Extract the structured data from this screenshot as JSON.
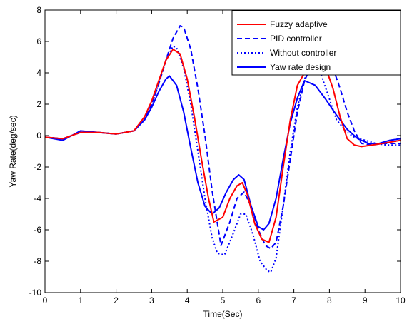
{
  "chart_data": {
    "type": "line",
    "title": "",
    "xlabel": "Time(Sec)",
    "ylabel": "Yaw Rate(deg/sec)",
    "xlim": [
      0,
      10
    ],
    "ylim": [
      -10,
      8
    ],
    "xticks": [
      "0",
      "1",
      "2",
      "3",
      "4",
      "5",
      "6",
      "7",
      "8",
      "9",
      "10"
    ],
    "yticks": [
      "8",
      "6",
      "4",
      "2",
      "0",
      "-2",
      "-4",
      "-6",
      "-8",
      "-10"
    ],
    "grid": false,
    "legend_position": "top-right",
    "series": [
      {
        "name": "Fuzzy adaptive",
        "color": "#ff0000",
        "style": "solid",
        "x": [
          0,
          0.5,
          1,
          1.5,
          2,
          2.5,
          2.8,
          3,
          3.2,
          3.4,
          3.6,
          3.8,
          4,
          4.2,
          4.4,
          4.6,
          4.75,
          5,
          5.2,
          5.4,
          5.55,
          5.7,
          5.9,
          6.1,
          6.3,
          6.5,
          6.7,
          6.9,
          7.1,
          7.3,
          7.6,
          7.9,
          8.1,
          8.3,
          8.5,
          8.7,
          8.9,
          9.2,
          9.5,
          10
        ],
        "values": [
          -0.1,
          -0.2,
          0.2,
          0.2,
          0.1,
          0.3,
          1.2,
          2.2,
          3.5,
          4.8,
          5.5,
          5.2,
          3.6,
          1.2,
          -1.5,
          -4.0,
          -5.5,
          -5.2,
          -4.0,
          -3.2,
          -3.0,
          -3.8,
          -5.6,
          -6.6,
          -6.8,
          -5.2,
          -2.0,
          1.0,
          3.2,
          4.0,
          4.3,
          4.3,
          3.0,
          1.2,
          -0.2,
          -0.6,
          -0.7,
          -0.6,
          -0.5,
          -0.3
        ]
      },
      {
        "name": "PID controller",
        "color": "#0000ff",
        "style": "dashed",
        "x": [
          0,
          0.5,
          1,
          1.5,
          2,
          2.5,
          2.8,
          3,
          3.2,
          3.4,
          3.6,
          3.8,
          3.9,
          4.1,
          4.3,
          4.5,
          4.7,
          4.95,
          5.2,
          5.4,
          5.6,
          5.8,
          6.0,
          6.2,
          6.35,
          6.5,
          6.7,
          6.9,
          7.1,
          7.3,
          7.6,
          7.9,
          8.1,
          8.3,
          8.5,
          8.7,
          8.9,
          9.2,
          9.5,
          10
        ],
        "values": [
          -0.1,
          -0.2,
          0.2,
          0.2,
          0.1,
          0.3,
          1.0,
          2.0,
          3.3,
          4.8,
          6.2,
          7.0,
          6.9,
          5.5,
          3.0,
          0.0,
          -3.5,
          -7.0,
          -5.5,
          -4.0,
          -3.6,
          -4.5,
          -6.0,
          -7.0,
          -7.2,
          -6.8,
          -4.5,
          -1.5,
          1.5,
          3.5,
          5.0,
          5.0,
          4.3,
          3.0,
          1.5,
          0.3,
          -0.5,
          -0.6,
          -0.5,
          -0.5
        ]
      },
      {
        "name": "Without controller",
        "color": "#0000ff",
        "style": "dotted",
        "x": [
          0,
          0.5,
          1,
          1.5,
          2,
          2.5,
          2.8,
          3,
          3.2,
          3.4,
          3.6,
          3.7,
          3.9,
          4.1,
          4.3,
          4.5,
          4.7,
          4.85,
          5.05,
          5.3,
          5.5,
          5.65,
          5.85,
          6.05,
          6.25,
          6.35,
          6.5,
          6.7,
          6.9,
          7.1,
          7.3,
          7.6,
          7.9,
          8.2,
          8.5,
          8.7,
          9.0,
          9.3,
          9.6,
          10
        ],
        "values": [
          -0.1,
          -0.2,
          0.2,
          0.2,
          0.1,
          0.3,
          1.0,
          2.0,
          3.3,
          4.8,
          5.7,
          5.6,
          4.3,
          2.0,
          -1.0,
          -4.0,
          -6.5,
          -7.5,
          -7.6,
          -6.2,
          -5.0,
          -5.0,
          -6.3,
          -8.0,
          -8.6,
          -8.7,
          -7.8,
          -4.5,
          -1.0,
          1.8,
          3.6,
          5.0,
          3.0,
          1.0,
          0.2,
          -0.1,
          -0.3,
          -0.5,
          -0.6,
          -0.6
        ]
      },
      {
        "name": "Yaw rate design",
        "color": "#0000ff",
        "style": "solid",
        "x": [
          0,
          0.5,
          1,
          1.5,
          2,
          2.5,
          2.8,
          3,
          3.2,
          3.4,
          3.5,
          3.7,
          3.9,
          4.1,
          4.3,
          4.5,
          4.7,
          4.9,
          5.1,
          5.3,
          5.45,
          5.6,
          5.8,
          6.0,
          6.15,
          6.3,
          6.5,
          6.7,
          6.9,
          7.1,
          7.3,
          7.6,
          7.9,
          8.2,
          8.5,
          8.8,
          9.1,
          9.4,
          9.7,
          10
        ],
        "values": [
          -0.1,
          -0.3,
          0.3,
          0.2,
          0.1,
          0.3,
          1.0,
          1.8,
          2.8,
          3.6,
          3.8,
          3.2,
          1.5,
          -0.8,
          -3.0,
          -4.5,
          -5.0,
          -4.6,
          -3.6,
          -2.8,
          -2.5,
          -2.8,
          -4.5,
          -5.8,
          -6.0,
          -5.6,
          -4.0,
          -1.5,
          0.8,
          2.4,
          3.5,
          3.2,
          2.3,
          1.3,
          0.4,
          -0.2,
          -0.5,
          -0.5,
          -0.3,
          -0.2
        ]
      }
    ]
  }
}
